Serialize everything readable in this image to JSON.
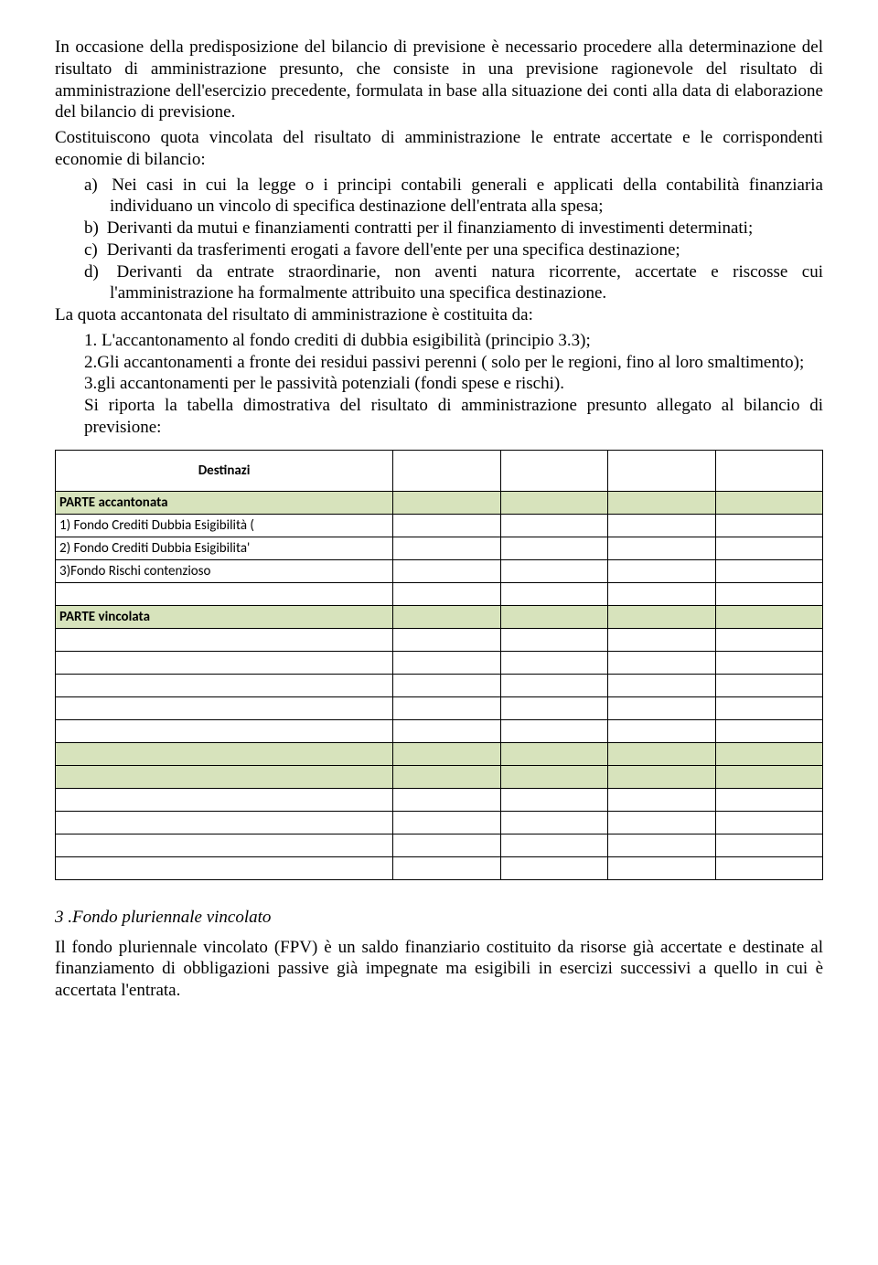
{
  "paragraphs": {
    "p1": "In occasione della predisposizione del bilancio di previsione è necessario procedere alla determinazione del risultato di amministrazione presunto, che consiste in una previsione ragionevole del risultato di amministrazione dell'esercizio precedente, formulata in base alla situazione dei conti alla data di elaborazione del bilancio di previsione.",
    "p2": "Costituiscono quota vincolata del risultato di amministrazione le entrate accertate e le corrispondenti economie di bilancio:",
    "p3": "La quota accantonata del risultato di amministrazione è costituita da:",
    "p4": "Si riporta la tabella dimostrativa del risultato di amministrazione presunto allegato al bilancio di previsione:",
    "p5": "Il fondo pluriennale vincolato (FPV) è un saldo finanziario costituito da risorse già accertate e destinate al finanziamento di obbligazioni passive già impegnate ma esigibili in esercizi successivi a quello in cui è accertata l'entrata."
  },
  "list_abc": {
    "a": "Nei casi in cui la legge o i principi contabili generali e applicati della contabilità finanziaria individuano un vincolo di specifica destinazione dell'entrata alla spesa;",
    "b": "Derivanti da mutui e finanziamenti contratti per il finanziamento di investimenti determinati;",
    "c": "Derivanti da trasferimenti erogati a favore dell'ente per una specifica destinazione;",
    "d": "Derivanti da entrate straordinarie, non aventi natura ricorrente, accertate e riscosse cui l'amministrazione ha formalmente attribuito una specifica destinazione."
  },
  "list_num": {
    "n1": "L'accantonamento al fondo crediti di dubbia esigibilità (principio 3.3);",
    "n2": "2.Gli accantonamenti a fronte dei residui passivi perenni ( solo per le regioni, fino al loro smaltimento);",
    "n3": "3.gli accantonamenti per le passività potenziali (fondi spese e rischi)."
  },
  "section3": "3 .Fondo pluriennale vincolato",
  "table": {
    "header_center": "Destinazi",
    "rows": [
      {
        "desc": "PARTE accantonata",
        "cls": "green-row bold-cell"
      },
      {
        "desc": "1) Fondo Crediti Dubbia Esigibilità (",
        "cls": "plain-row"
      },
      {
        "desc": "2) Fondo Crediti Dubbia Esigibilita'",
        "cls": "plain-row"
      },
      {
        "desc": "3)Fondo Rischi contenzioso",
        "cls": "plain-row"
      },
      {
        "desc": "",
        "cls": "plain-row"
      },
      {
        "desc": "PARTE vincolata",
        "cls": "green-row bold-cell"
      },
      {
        "desc": "",
        "cls": "plain-row"
      },
      {
        "desc": "",
        "cls": "plain-row"
      },
      {
        "desc": "",
        "cls": "plain-row"
      },
      {
        "desc": "",
        "cls": "plain-row"
      },
      {
        "desc": "",
        "cls": "plain-row"
      },
      {
        "desc": "",
        "cls": "green-row"
      },
      {
        "desc": "",
        "cls": "green-row"
      },
      {
        "desc": "",
        "cls": "plain-row"
      },
      {
        "desc": "",
        "cls": "plain-row"
      },
      {
        "desc": "",
        "cls": "plain-row"
      },
      {
        "desc": "",
        "cls": "plain-row"
      }
    ]
  },
  "colors": {
    "green": "#d7e3bc",
    "border": "#000000",
    "text": "#000000",
    "bg": "#ffffff"
  }
}
